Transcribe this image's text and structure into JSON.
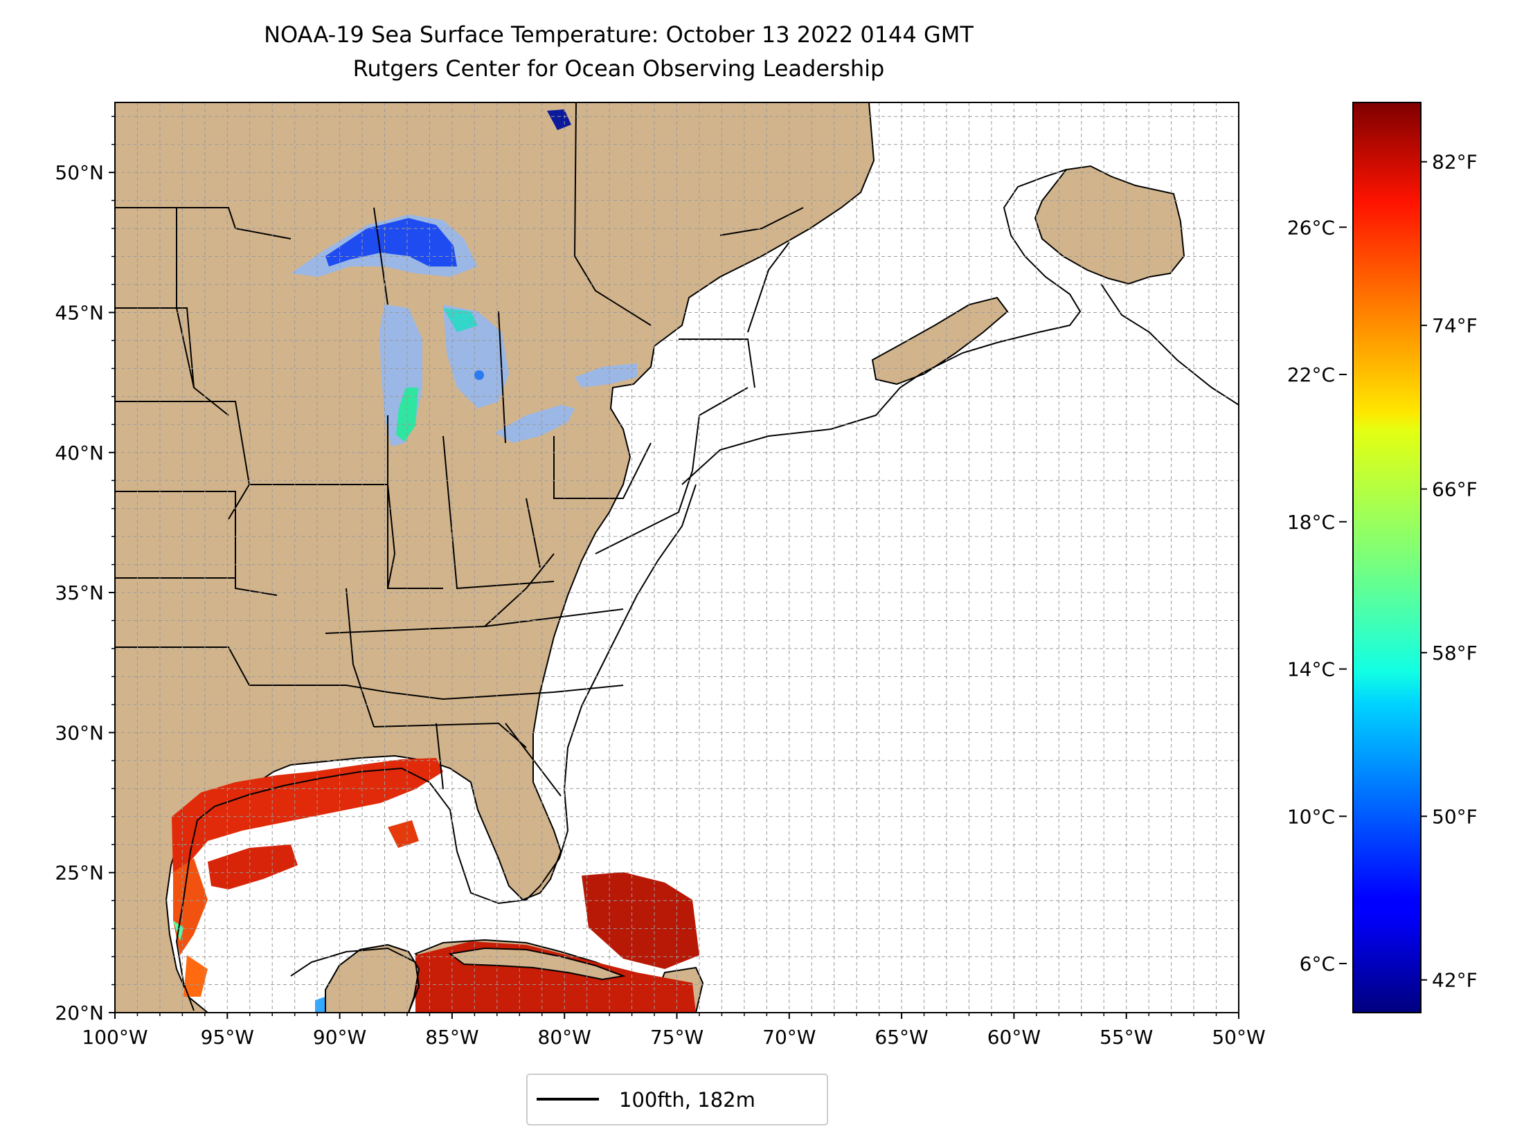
{
  "title": {
    "line1": "NOAA-19 Sea Surface Temperature: October 13 2022 0144 GMT",
    "line2": "Rutgers Center for Ocean Observing Leadership"
  },
  "map": {
    "lon_range": [
      -100,
      -50
    ],
    "lat_range": [
      20,
      52.5
    ],
    "lat_ticks": [
      {
        "value": 50,
        "label": "50°N"
      },
      {
        "value": 45,
        "label": "45°N"
      },
      {
        "value": 40,
        "label": "40°N"
      },
      {
        "value": 35,
        "label": "35°N"
      },
      {
        "value": 30,
        "label": "30°N"
      },
      {
        "value": 25,
        "label": "25°N"
      },
      {
        "value": 20,
        "label": "20°N"
      }
    ],
    "lon_ticks": [
      {
        "value": -100,
        "label": "100°W"
      },
      {
        "value": -95,
        "label": "95°W"
      },
      {
        "value": -90,
        "label": "90°W"
      },
      {
        "value": -85,
        "label": "85°W"
      },
      {
        "value": -80,
        "label": "80°W"
      },
      {
        "value": -75,
        "label": "75°W"
      },
      {
        "value": -70,
        "label": "70°W"
      },
      {
        "value": -65,
        "label": "65°W"
      },
      {
        "value": -60,
        "label": "60°W"
      },
      {
        "value": -55,
        "label": "55°W"
      },
      {
        "value": -50,
        "label": "50°W"
      }
    ],
    "grid": true,
    "grid_spacing_deg": 1,
    "land_color": "#d2b48c",
    "lake_no_data_color": "#9ab7e6",
    "ocean_no_data_color": "#ffffff"
  },
  "colorbar": {
    "colormap": "jet",
    "celsius_ticks": [
      {
        "value": 26,
        "label": "26°C"
      },
      {
        "value": 22,
        "label": "22°C"
      },
      {
        "value": 18,
        "label": "18°C"
      },
      {
        "value": 14,
        "label": "14°C"
      },
      {
        "value": 10,
        "label": "10°C"
      },
      {
        "value": 6,
        "label": "6°C"
      }
    ],
    "fahrenheit_ticks": [
      {
        "value": 82,
        "label": "82°F"
      },
      {
        "value": 74,
        "label": "74°F"
      },
      {
        "value": 66,
        "label": "66°F"
      },
      {
        "value": 58,
        "label": "58°F"
      },
      {
        "value": 50,
        "label": "50°F"
      },
      {
        "value": 42,
        "label": "42°F"
      }
    ],
    "range_f": [
      40.4,
      84.9
    ]
  },
  "legend": {
    "label": "100fth, 182m",
    "line_color": "#000000"
  }
}
